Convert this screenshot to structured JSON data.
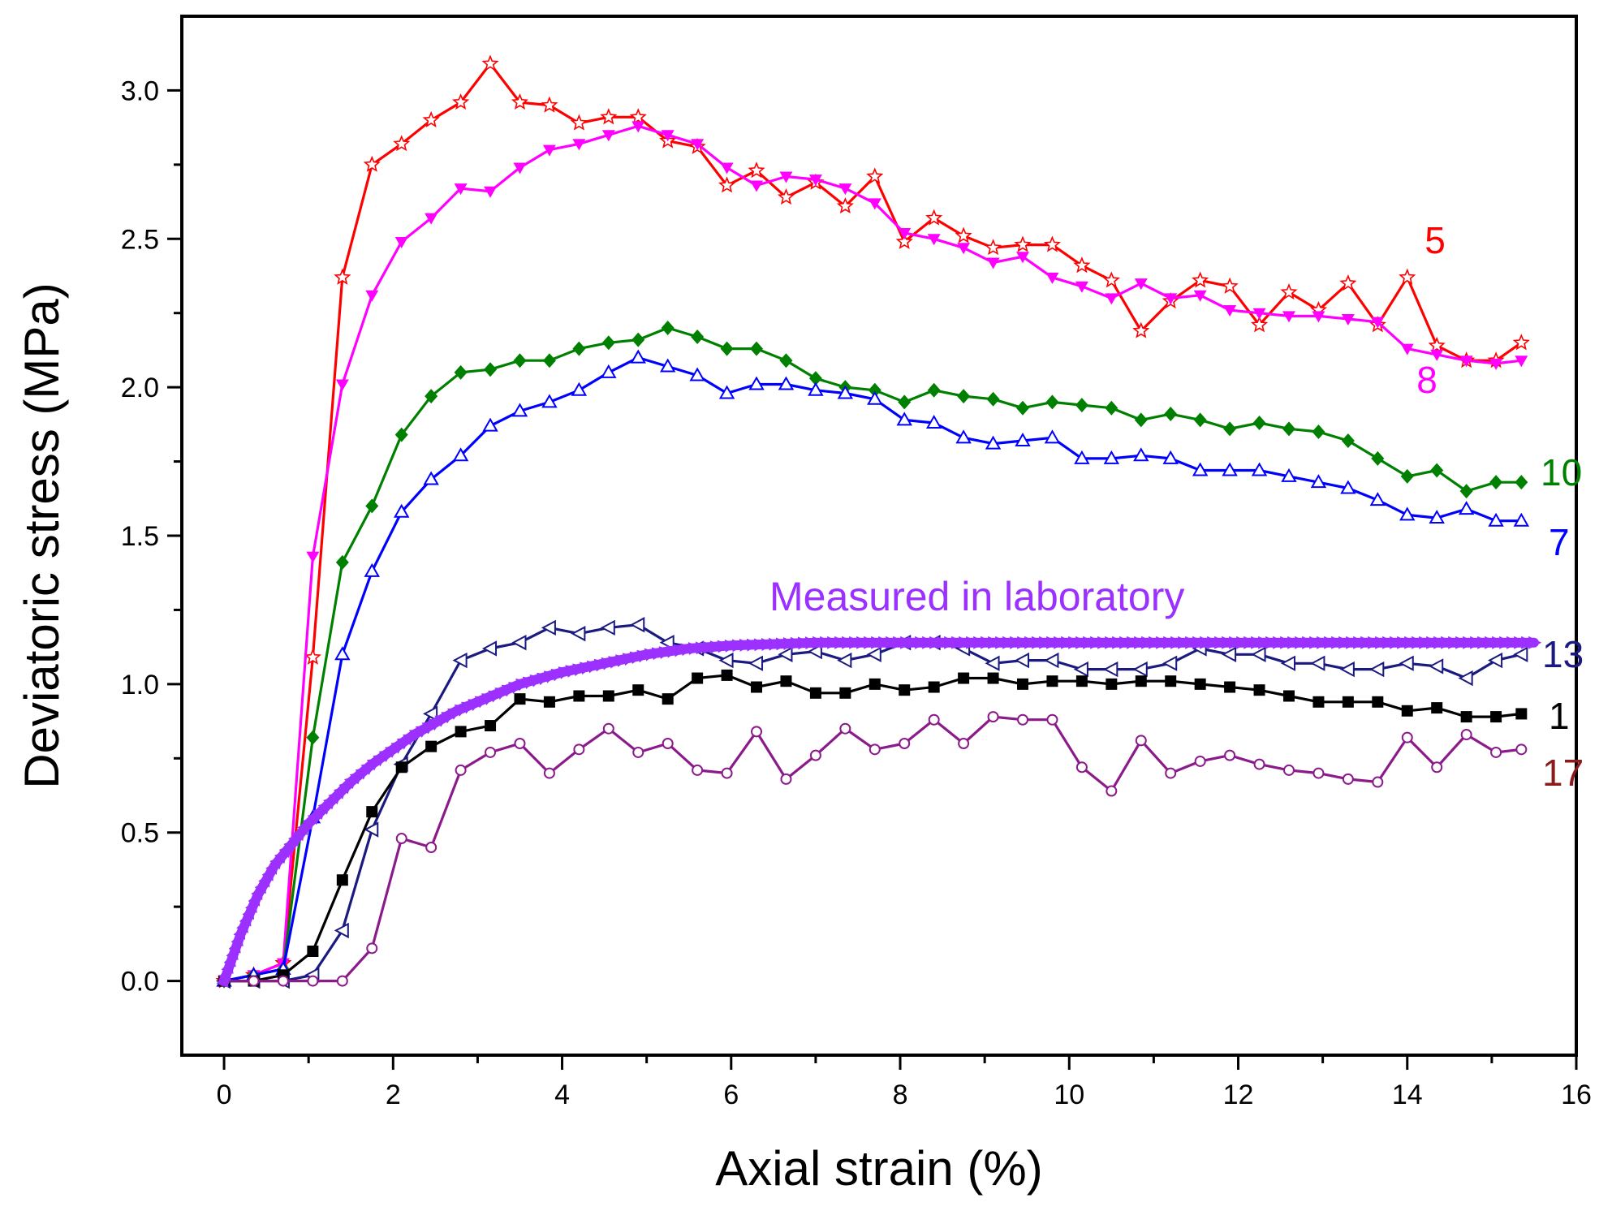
{
  "chart_data": {
    "type": "line",
    "xlabel": "Axial strain (%)",
    "ylabel": "Deviatoric stress (MPa)",
    "xlim": [
      -0.5,
      16
    ],
    "ylim": [
      -0.25,
      3.25
    ],
    "xticks": [
      0,
      2,
      4,
      6,
      8,
      10,
      12,
      14,
      16
    ],
    "yticks": [
      0.0,
      0.5,
      1.0,
      1.5,
      2.0,
      2.5,
      3.0
    ],
    "ytick_labels": [
      "0.0",
      "0.5",
      "1.0",
      "1.5",
      "2.0",
      "2.5",
      "3.0"
    ],
    "annotation": {
      "text": "Measured in laboratory",
      "color": "#9B30FF"
    },
    "measured": {
      "name": "Measured in laboratory",
      "color": "#9B30FF",
      "x": [
        0,
        0.2,
        0.4,
        0.6,
        0.8,
        1.0,
        1.25,
        1.5,
        1.75,
        2.0,
        2.25,
        2.5,
        2.75,
        3.0,
        3.25,
        3.5,
        3.75,
        4.0,
        4.5,
        5.0,
        5.5,
        6.0,
        7.0,
        8.0,
        9.0,
        10.0,
        11.0,
        12.0,
        13.0,
        14.0,
        15.0,
        15.5
      ],
      "y": [
        0,
        0.16,
        0.29,
        0.39,
        0.46,
        0.53,
        0.6,
        0.67,
        0.73,
        0.78,
        0.83,
        0.87,
        0.91,
        0.94,
        0.97,
        1.0,
        1.02,
        1.04,
        1.07,
        1.1,
        1.12,
        1.13,
        1.14,
        1.14,
        1.14,
        1.14,
        1.14,
        1.14,
        1.14,
        1.14,
        1.14,
        1.14
      ]
    },
    "series": [
      {
        "name": "5",
        "label": "5",
        "color": "#FF0000",
        "marker": "star",
        "x": [
          0,
          0.35,
          0.7,
          1.05,
          1.4,
          1.75,
          2.1,
          2.45,
          2.8,
          3.15,
          3.5,
          3.85,
          4.2,
          4.55,
          4.9,
          5.25,
          5.6,
          5.95,
          6.3,
          6.65,
          7.0,
          7.35,
          7.7,
          8.05,
          8.4,
          8.75,
          9.1,
          9.45,
          9.8,
          10.15,
          10.5,
          10.85,
          11.2,
          11.55,
          11.9,
          12.25,
          12.6,
          12.95,
          13.3,
          13.65,
          14.0,
          14.35,
          14.7,
          15.05,
          15.35
        ],
        "y": [
          0,
          0.02,
          0.06,
          1.09,
          2.37,
          2.75,
          2.82,
          2.9,
          2.96,
          3.09,
          2.96,
          2.95,
          2.89,
          2.91,
          2.91,
          2.83,
          2.81,
          2.68,
          2.73,
          2.64,
          2.69,
          2.61,
          2.71,
          2.49,
          2.57,
          2.51,
          2.47,
          2.48,
          2.48,
          2.41,
          2.36,
          2.19,
          2.29,
          2.36,
          2.34,
          2.21,
          2.32,
          2.26,
          2.35,
          2.21,
          2.37,
          2.14,
          2.09,
          2.09,
          2.15
        ]
      },
      {
        "name": "8",
        "label": "8",
        "color": "#FF00FF",
        "marker": "triangle-down",
        "x": [
          0,
          0.35,
          0.7,
          1.05,
          1.4,
          1.75,
          2.1,
          2.45,
          2.8,
          3.15,
          3.5,
          3.85,
          4.2,
          4.55,
          4.9,
          5.25,
          5.6,
          5.95,
          6.3,
          6.65,
          7.0,
          7.35,
          7.7,
          8.05,
          8.4,
          8.75,
          9.1,
          9.45,
          9.8,
          10.15,
          10.5,
          10.85,
          11.2,
          11.55,
          11.9,
          12.25,
          12.6,
          12.95,
          13.3,
          13.65,
          14.0,
          14.35,
          14.7,
          15.05,
          15.35
        ],
        "y": [
          0,
          0.02,
          0.06,
          1.43,
          2.01,
          2.31,
          2.49,
          2.57,
          2.67,
          2.66,
          2.74,
          2.8,
          2.82,
          2.85,
          2.88,
          2.85,
          2.82,
          2.74,
          2.68,
          2.71,
          2.7,
          2.67,
          2.62,
          2.52,
          2.5,
          2.47,
          2.42,
          2.44,
          2.37,
          2.34,
          2.3,
          2.35,
          2.3,
          2.31,
          2.26,
          2.25,
          2.24,
          2.24,
          2.23,
          2.22,
          2.13,
          2.11,
          2.09,
          2.08,
          2.09
        ]
      },
      {
        "name": "10",
        "label": "10",
        "color": "#008000",
        "marker": "diamond",
        "x": [
          0,
          0.35,
          0.7,
          1.05,
          1.4,
          1.75,
          2.1,
          2.45,
          2.8,
          3.15,
          3.5,
          3.85,
          4.2,
          4.55,
          4.9,
          5.25,
          5.6,
          5.95,
          6.3,
          6.65,
          7.0,
          7.35,
          7.7,
          8.05,
          8.4,
          8.75,
          9.1,
          9.45,
          9.8,
          10.15,
          10.5,
          10.85,
          11.2,
          11.55,
          11.9,
          12.25,
          12.6,
          12.95,
          13.3,
          13.65,
          14.0,
          14.35,
          14.7,
          15.05,
          15.35
        ],
        "y": [
          0,
          0.02,
          0.04,
          0.82,
          1.41,
          1.6,
          1.84,
          1.97,
          2.05,
          2.06,
          2.09,
          2.09,
          2.13,
          2.15,
          2.16,
          2.2,
          2.17,
          2.13,
          2.13,
          2.09,
          2.03,
          2.0,
          1.99,
          1.95,
          1.99,
          1.97,
          1.96,
          1.93,
          1.95,
          1.94,
          1.93,
          1.89,
          1.91,
          1.89,
          1.86,
          1.88,
          1.86,
          1.85,
          1.82,
          1.76,
          1.7,
          1.72,
          1.65,
          1.68,
          1.68
        ]
      },
      {
        "name": "7",
        "label": "7",
        "color": "#0000FF",
        "marker": "triangle-up-open",
        "x": [
          0,
          0.35,
          0.7,
          1.05,
          1.4,
          1.75,
          2.1,
          2.45,
          2.8,
          3.15,
          3.5,
          3.85,
          4.2,
          4.55,
          4.9,
          5.25,
          5.6,
          5.95,
          6.3,
          6.65,
          7.0,
          7.35,
          7.7,
          8.05,
          8.4,
          8.75,
          9.1,
          9.45,
          9.8,
          10.15,
          10.5,
          10.85,
          11.2,
          11.55,
          11.9,
          12.25,
          12.6,
          12.95,
          13.3,
          13.65,
          14.0,
          14.35,
          14.7,
          15.05,
          15.35
        ],
        "y": [
          0,
          0.02,
          0.04,
          0.55,
          1.1,
          1.38,
          1.58,
          1.69,
          1.77,
          1.87,
          1.92,
          1.95,
          1.99,
          2.05,
          2.1,
          2.07,
          2.04,
          1.98,
          2.01,
          2.01,
          1.99,
          1.98,
          1.96,
          1.89,
          1.88,
          1.83,
          1.81,
          1.82,
          1.83,
          1.76,
          1.76,
          1.77,
          1.76,
          1.72,
          1.72,
          1.72,
          1.7,
          1.68,
          1.66,
          1.62,
          1.57,
          1.56,
          1.59,
          1.55,
          1.55
        ]
      },
      {
        "name": "13",
        "label": "13",
        "color": "#1A1A80",
        "marker": "triangle-left-open",
        "x": [
          0,
          0.35,
          0.7,
          1.05,
          1.4,
          1.75,
          2.1,
          2.45,
          2.8,
          3.15,
          3.5,
          3.85,
          4.2,
          4.55,
          4.9,
          5.25,
          5.6,
          5.95,
          6.3,
          6.65,
          7.0,
          7.35,
          7.7,
          8.05,
          8.4,
          8.75,
          9.1,
          9.45,
          9.8,
          10.15,
          10.5,
          10.85,
          11.2,
          11.55,
          11.9,
          12.25,
          12.6,
          12.95,
          13.3,
          13.65,
          14.0,
          14.35,
          14.7,
          15.05,
          15.35
        ],
        "y": [
          0,
          0,
          0,
          0.02,
          0.17,
          0.51,
          0.73,
          0.9,
          1.08,
          1.12,
          1.14,
          1.19,
          1.17,
          1.19,
          1.2,
          1.14,
          1.12,
          1.08,
          1.07,
          1.1,
          1.11,
          1.08,
          1.1,
          1.14,
          1.14,
          1.12,
          1.07,
          1.08,
          1.08,
          1.05,
          1.05,
          1.05,
          1.07,
          1.12,
          1.1,
          1.1,
          1.07,
          1.07,
          1.05,
          1.05,
          1.07,
          1.06,
          1.02,
          1.08,
          1.1
        ]
      },
      {
        "name": "1",
        "label": "1",
        "color": "#000000",
        "marker": "square",
        "x": [
          0,
          0.35,
          0.7,
          1.05,
          1.4,
          1.75,
          2.1,
          2.45,
          2.8,
          3.15,
          3.5,
          3.85,
          4.2,
          4.55,
          4.9,
          5.25,
          5.6,
          5.95,
          6.3,
          6.65,
          7.0,
          7.35,
          7.7,
          8.05,
          8.4,
          8.75,
          9.1,
          9.45,
          9.8,
          10.15,
          10.5,
          10.85,
          11.2,
          11.55,
          11.9,
          12.25,
          12.6,
          12.95,
          13.3,
          13.65,
          14.0,
          14.35,
          14.7,
          15.05,
          15.35
        ],
        "y": [
          0,
          0,
          0.02,
          0.1,
          0.34,
          0.57,
          0.72,
          0.79,
          0.84,
          0.86,
          0.95,
          0.94,
          0.96,
          0.96,
          0.98,
          0.95,
          1.02,
          1.03,
          0.99,
          1.01,
          0.97,
          0.97,
          1.0,
          0.98,
          0.99,
          1.02,
          1.02,
          1.0,
          1.01,
          1.01,
          1.0,
          1.01,
          1.01,
          1.0,
          0.99,
          0.98,
          0.96,
          0.94,
          0.94,
          0.94,
          0.91,
          0.92,
          0.89,
          0.89,
          0.9
        ]
      },
      {
        "name": "17",
        "label": "17",
        "color": "#8B1A8B",
        "marker": "circle-open",
        "x": [
          0,
          0.35,
          0.7,
          1.05,
          1.4,
          1.75,
          2.1,
          2.45,
          2.8,
          3.15,
          3.5,
          3.85,
          4.2,
          4.55,
          4.9,
          5.25,
          5.6,
          5.95,
          6.3,
          6.65,
          7.0,
          7.35,
          7.7,
          8.05,
          8.4,
          8.75,
          9.1,
          9.45,
          9.8,
          10.15,
          10.5,
          10.85,
          11.2,
          11.55,
          11.9,
          12.25,
          12.6,
          12.95,
          13.3,
          13.65,
          14.0,
          14.35,
          14.7,
          15.05,
          15.35
        ],
        "y": [
          0,
          0,
          0,
          0,
          0,
          0.11,
          0.48,
          0.45,
          0.71,
          0.77,
          0.8,
          0.7,
          0.78,
          0.85,
          0.77,
          0.8,
          0.71,
          0.7,
          0.84,
          0.68,
          0.76,
          0.85,
          0.78,
          0.8,
          0.88,
          0.8,
          0.89,
          0.88,
          0.88,
          0.72,
          0.64,
          0.81,
          0.7,
          0.74,
          0.76,
          0.73,
          0.71,
          0.7,
          0.68,
          0.67,
          0.82,
          0.72,
          0.83,
          0.77,
          0.78
        ]
      }
    ],
    "series_label_colors": {
      "17": "#8B1A1A"
    }
  }
}
